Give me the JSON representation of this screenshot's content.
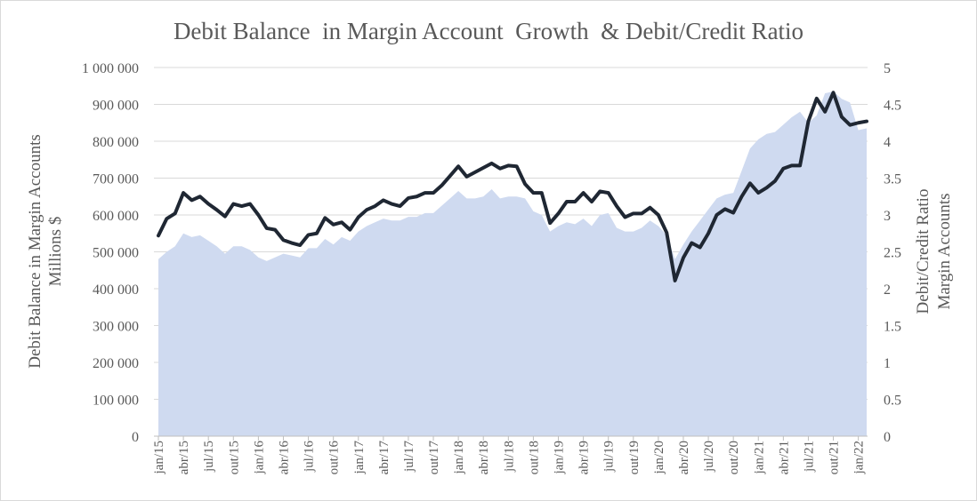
{
  "chart_data": {
    "type": "area+line",
    "title": "Debit Balance  in Margin Account  Growth  & Debit/Credit Ratio",
    "ylabel_left": [
      "Debit Balance in Margin Accounts",
      "Millions $"
    ],
    "ylabel_right": [
      "Debit/Credit Ratio",
      "Margin Accounts"
    ],
    "ylim_left": [
      0,
      1000000
    ],
    "ylim_right": [
      0,
      5
    ],
    "yticks_left": [
      "0",
      "100 000",
      "200 000",
      "300 000",
      "400 000",
      "500 000",
      "600 000",
      "700 000",
      "800 000",
      "900 000",
      "1 000 000"
    ],
    "yticks_right": [
      "0",
      "0.5",
      "1",
      "1.5",
      "2",
      "2.5",
      "3",
      "3.5",
      "4",
      "4.5",
      "5"
    ],
    "x_tick_labels": [
      "jan/15",
      "abr/15",
      "jul/15",
      "out/15",
      "jan/16",
      "abr/16",
      "jul/16",
      "out/16",
      "jan/17",
      "abr/17",
      "jul/17",
      "out/17",
      "jan/18",
      "abr/18",
      "jul/18",
      "out/18",
      "jan/19",
      "abr/19",
      "jul/19",
      "out/19",
      "jan/20",
      "abr/20",
      "jul/20",
      "out/20",
      "jan/21",
      "abr/21",
      "jul/21",
      "out/21",
      "jan/22"
    ],
    "grid": true,
    "colors": {
      "area": "#cfdaf0",
      "line": "#1f2733",
      "grid": "#d9d9d9",
      "text": "#595959"
    },
    "series": [
      {
        "axis": "left",
        "style": "area",
        "values": [
          480000,
          500000,
          515000,
          550000,
          540000,
          545000,
          530000,
          515000,
          495000,
          515000,
          515000,
          505000,
          485000,
          475000,
          485000,
          495000,
          490000,
          485000,
          510000,
          510000,
          535000,
          520000,
          540000,
          530000,
          555000,
          570000,
          580000,
          590000,
          585000,
          585000,
          595000,
          595000,
          605000,
          605000,
          625000,
          645000,
          665000,
          645000,
          645000,
          650000,
          670000,
          645000,
          650000,
          650000,
          645000,
          610000,
          600000,
          555000,
          570000,
          580000,
          575000,
          590000,
          570000,
          600000,
          605000,
          565000,
          555000,
          555000,
          565000,
          585000,
          570000,
          545000,
          480000,
          520000,
          555000,
          585000,
          615000,
          645000,
          655000,
          660000,
          720000,
          780000,
          805000,
          820000,
          825000,
          845000,
          865000,
          880000,
          850000,
          870000,
          930000,
          935000,
          915000,
          905000,
          830000,
          835000
        ]
      },
      {
        "axis": "right",
        "style": "line",
        "values": [
          2.72,
          2.95,
          3.02,
          3.3,
          3.2,
          3.25,
          3.15,
          3.07,
          2.98,
          3.15,
          3.12,
          3.15,
          3.0,
          2.82,
          2.8,
          2.66,
          2.62,
          2.59,
          2.73,
          2.75,
          2.96,
          2.87,
          2.9,
          2.8,
          2.97,
          3.07,
          3.12,
          3.2,
          3.15,
          3.12,
          3.23,
          3.25,
          3.3,
          3.3,
          3.4,
          3.53,
          3.66,
          3.52,
          3.58,
          3.64,
          3.7,
          3.63,
          3.67,
          3.66,
          3.42,
          3.3,
          3.3,
          2.89,
          3.02,
          3.18,
          3.18,
          3.3,
          3.18,
          3.32,
          3.3,
          3.12,
          2.97,
          3.02,
          3.02,
          3.1,
          3.0,
          2.76,
          2.11,
          2.42,
          2.62,
          2.56,
          2.75,
          3.0,
          3.08,
          3.03,
          3.25,
          3.43,
          3.3,
          3.37,
          3.46,
          3.63,
          3.67,
          3.67,
          4.27,
          4.58,
          4.4,
          4.66,
          4.33,
          4.22,
          4.25,
          4.27
        ]
      }
    ]
  }
}
